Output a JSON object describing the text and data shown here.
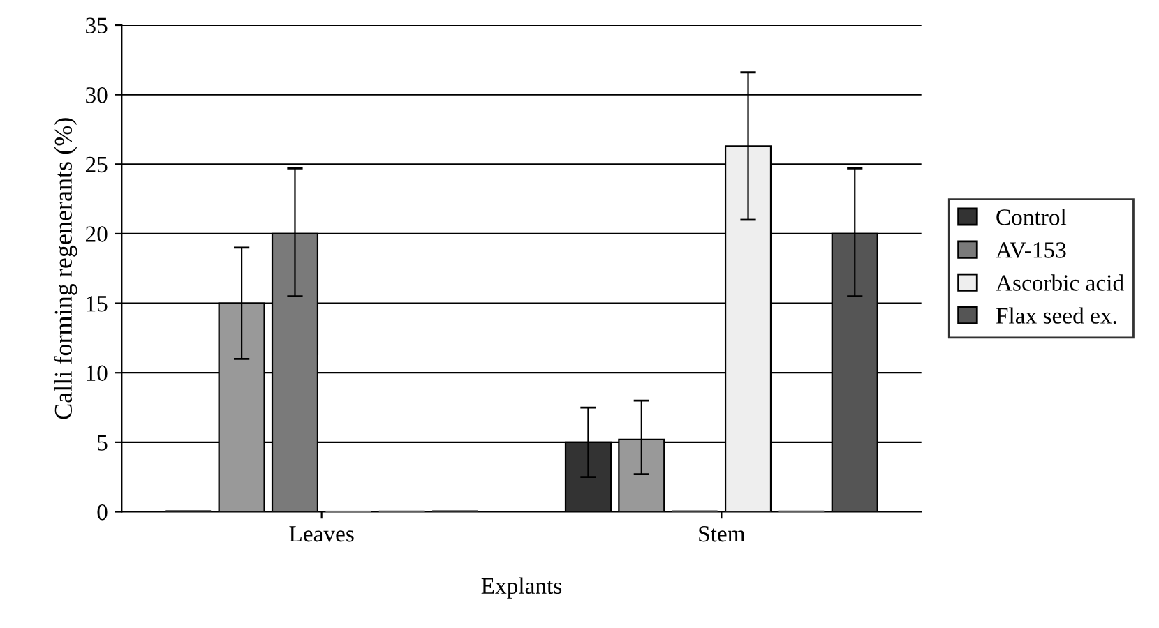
{
  "chart_data": {
    "type": "bar",
    "xlabel": "Explants",
    "ylabel": "Calli forming regenerants (%)",
    "categories": [
      "Leaves",
      "Stem"
    ],
    "series": [
      {
        "name": "Control",
        "color": "#333333",
        "values": [
          0,
          5
        ],
        "errors": [
          null,
          [
            2.5,
            7.5
          ]
        ]
      },
      {
        "color": "#999999",
        "values": [
          15,
          5.2
        ],
        "errors": [
          [
            11,
            19
          ],
          [
            2.7,
            8
          ]
        ]
      },
      {
        "name": "AV-153",
        "color": "#7a7a7a",
        "values": [
          20,
          0
        ],
        "errors": [
          [
            15.5,
            24.7
          ],
          null
        ]
      },
      {
        "name": "Ascorbic acid",
        "color": "#eeeeee",
        "values": [
          0,
          26.3
        ],
        "errors": [
          null,
          [
            21,
            31.6
          ]
        ]
      },
      {
        "color": "#bbbbbb",
        "values": [
          0,
          0
        ],
        "errors": [
          null,
          null
        ]
      },
      {
        "name": "Flax seed ex.",
        "color": "#555555",
        "values": [
          0,
          20
        ],
        "errors": [
          null,
          [
            15.5,
            24.7
          ]
        ]
      }
    ],
    "ylim": [
      0,
      35
    ],
    "yticks": [
      0,
      5,
      10,
      15,
      20,
      25,
      30,
      35
    ],
    "grid": "y",
    "legend": "right"
  }
}
